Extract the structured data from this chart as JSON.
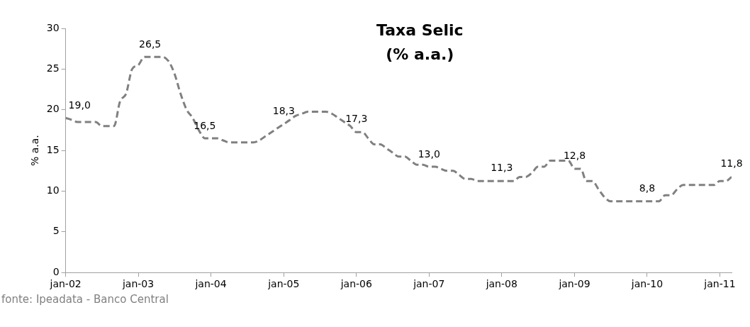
{
  "chart_data": {
    "type": "line",
    "title": "Taxa Selic",
    "subtitle": "(% a.a.)",
    "ylabel": "% a.a.",
    "x": [
      "2002-01",
      "2002-02",
      "2002-03",
      "2002-04",
      "2002-05",
      "2002-06",
      "2002-07",
      "2002-08",
      "2002-09",
      "2002-10",
      "2002-11",
      "2002-12",
      "2003-01",
      "2003-02",
      "2003-03",
      "2003-04",
      "2003-05",
      "2003-06",
      "2003-07",
      "2003-08",
      "2003-09",
      "2003-10",
      "2003-11",
      "2003-12",
      "2004-01",
      "2004-02",
      "2004-03",
      "2004-04",
      "2004-05",
      "2004-06",
      "2004-07",
      "2004-08",
      "2004-09",
      "2004-10",
      "2004-11",
      "2004-12",
      "2005-01",
      "2005-02",
      "2005-03",
      "2005-04",
      "2005-05",
      "2005-06",
      "2005-07",
      "2005-08",
      "2005-09",
      "2005-10",
      "2005-11",
      "2005-12",
      "2006-01",
      "2006-02",
      "2006-03",
      "2006-04",
      "2006-05",
      "2006-06",
      "2006-07",
      "2006-08",
      "2006-09",
      "2006-10",
      "2006-11",
      "2006-12",
      "2007-01",
      "2007-02",
      "2007-03",
      "2007-04",
      "2007-05",
      "2007-06",
      "2007-07",
      "2007-08",
      "2007-09",
      "2007-10",
      "2007-11",
      "2007-12",
      "2008-01",
      "2008-02",
      "2008-03",
      "2008-04",
      "2008-05",
      "2008-06",
      "2008-07",
      "2008-08",
      "2008-09",
      "2008-10",
      "2008-11",
      "2008-12",
      "2009-01",
      "2009-02",
      "2009-03",
      "2009-04",
      "2009-05",
      "2009-06",
      "2009-07",
      "2009-08",
      "2009-09",
      "2009-10",
      "2009-11",
      "2009-12",
      "2010-01",
      "2010-02",
      "2010-03",
      "2010-04",
      "2010-05",
      "2010-06",
      "2010-07",
      "2010-08",
      "2010-09",
      "2010-10",
      "2010-11",
      "2010-12",
      "2011-01",
      "2011-02",
      "2011-03"
    ],
    "series": [
      {
        "color": "#808080",
        "values": [
          19.0,
          18.75,
          18.5,
          18.5,
          18.5,
          18.5,
          18.0,
          18.0,
          18.0,
          21.0,
          22.0,
          25.0,
          25.5,
          26.5,
          26.5,
          26.5,
          26.5,
          26.0,
          24.5,
          22.0,
          20.0,
          19.0,
          17.5,
          16.5,
          16.5,
          16.5,
          16.25,
          16.0,
          16.0,
          16.0,
          16.0,
          16.0,
          16.25,
          16.75,
          17.25,
          17.75,
          18.25,
          18.75,
          19.25,
          19.5,
          19.75,
          19.75,
          19.75,
          19.75,
          19.5,
          19.0,
          18.5,
          18.0,
          17.25,
          17.25,
          16.5,
          15.75,
          15.75,
          15.25,
          14.75,
          14.25,
          14.25,
          13.75,
          13.25,
          13.25,
          13.0,
          13.0,
          12.75,
          12.5,
          12.5,
          12.0,
          11.5,
          11.5,
          11.25,
          11.25,
          11.25,
          11.25,
          11.25,
          11.25,
          11.25,
          11.75,
          11.75,
          12.25,
          13.0,
          13.0,
          13.75,
          13.75,
          13.75,
          13.75,
          12.75,
          12.75,
          11.25,
          11.25,
          10.25,
          9.25,
          8.75,
          8.75,
          8.75,
          8.75,
          8.75,
          8.75,
          8.75,
          8.75,
          8.75,
          9.5,
          9.5,
          10.25,
          10.75,
          10.75,
          10.75,
          10.75,
          10.75,
          10.75,
          11.25,
          11.25,
          11.75
        ]
      }
    ],
    "marker": "none",
    "line_style": "dashed",
    "grid": false,
    "legend": false,
    "ylim": [
      0,
      30
    ],
    "yticks": [
      0,
      5,
      10,
      15,
      20,
      25,
      30
    ],
    "xlim": [
      "2002-01",
      "2011-03"
    ],
    "xticks": [
      {
        "value": "2002-01",
        "label": "jan-02"
      },
      {
        "value": "2003-01",
        "label": "jan-03"
      },
      {
        "value": "2004-01",
        "label": "jan-04"
      },
      {
        "value": "2005-01",
        "label": "jan-05"
      },
      {
        "value": "2006-01",
        "label": "jan-06"
      },
      {
        "value": "2007-01",
        "label": "jan-07"
      },
      {
        "value": "2008-01",
        "label": "jan-08"
      },
      {
        "value": "2009-01",
        "label": "jan-09"
      },
      {
        "value": "2010-01",
        "label": "jan-10"
      },
      {
        "value": "2011-01",
        "label": "jan-11"
      }
    ],
    "annotations": [
      {
        "text": "19,0",
        "x": "2002-01",
        "y": 19.0
      },
      {
        "text": "26,5",
        "x": "2003-03",
        "y": 26.5
      },
      {
        "text": "16,5",
        "x": "2003-12",
        "y": 16.5
      },
      {
        "text": "18,3",
        "x": "2005-01",
        "y": 18.3
      },
      {
        "text": "17,3",
        "x": "2006-01",
        "y": 17.3
      },
      {
        "text": "13,0",
        "x": "2007-01",
        "y": 13.0
      },
      {
        "text": "11,3",
        "x": "2008-01",
        "y": 11.3
      },
      {
        "text": "12,8",
        "x": "2009-01",
        "y": 12.8
      },
      {
        "text": "8,8",
        "x": "2010-01",
        "y": 8.8
      },
      {
        "text": "11,8",
        "x": "2011-03",
        "y": 11.8
      },
      "fonte: Ipeadata - Banco Central"
    ]
  }
}
